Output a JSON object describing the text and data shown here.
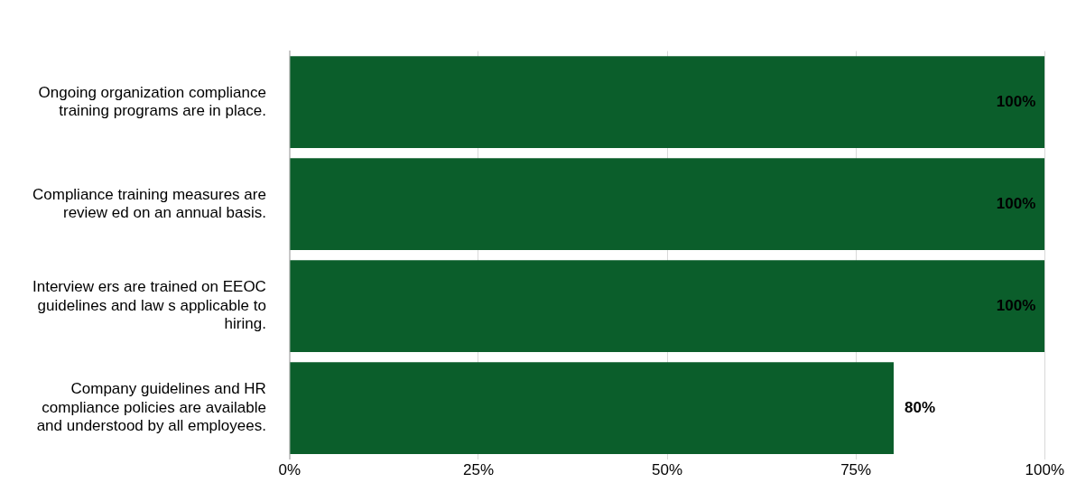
{
  "chart_data": {
    "type": "bar",
    "orientation": "horizontal",
    "categories": [
      "Ongoing organization compliance training programs are in place.",
      "Compliance training measures are review ed on an annual basis.",
      "Interview ers are trained on EEOC guidelines and law s applicable to hiring.",
      "Company guidelines and HR compliance policies are available and understood by all employees."
    ],
    "values": [
      100,
      100,
      100,
      80
    ],
    "value_labels": [
      "100%",
      "100%",
      "100%",
      "80%"
    ],
    "color": "#0b5e2b",
    "xlim": [
      0,
      100
    ],
    "xticks": [
      {
        "value": 0,
        "label": "0%"
      },
      {
        "value": 25,
        "label": "25%"
      },
      {
        "value": 50,
        "label": "50%"
      },
      {
        "value": 75,
        "label": "75%"
      },
      {
        "value": 100,
        "label": "100%"
      }
    ],
    "grid": "x"
  }
}
